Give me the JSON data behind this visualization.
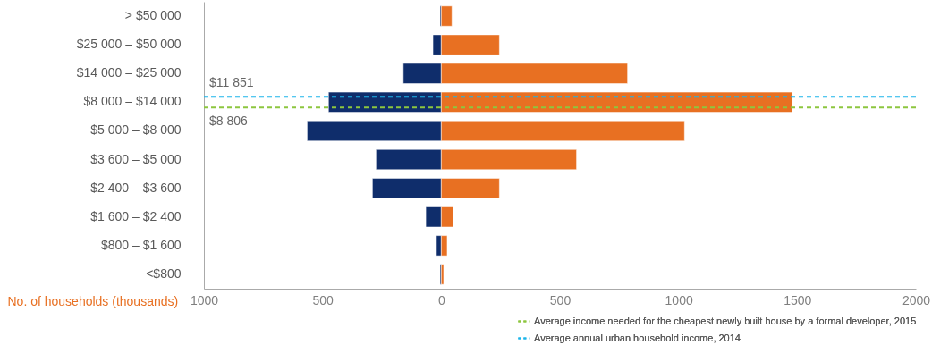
{
  "chart_data": {
    "type": "bar",
    "orientation": "horizontal",
    "xlabel": "No. of households (thousands)",
    "categories": [
      "> $50 000",
      "$25 000 – $50 000",
      "$14 000 – $25 000",
      "$8 000 – $14 000",
      "$5 000 – $8 000",
      "$3 600 – $5 000",
      "$2 400 – $3 600",
      "$1 600 – $2 400",
      "$800 – $1 600",
      "<$800"
    ],
    "series": [
      {
        "color": "#0f2d6b",
        "values": [
          -5,
          -35,
          -160,
          -475,
          -565,
          -275,
          -290,
          -65,
          -20,
          -5
        ]
      },
      {
        "color": "#e87022",
        "values": [
          45,
          245,
          785,
          1480,
          1025,
          570,
          245,
          50,
          25,
          10
        ]
      }
    ],
    "xlim": [
      -1000,
      2000
    ],
    "xticks": [
      {
        "value": -1000,
        "label": "1000"
      },
      {
        "value": -500,
        "label": "500"
      },
      0,
      500,
      1000,
      1500,
      2000
    ],
    "ref_lines": [
      {
        "axis": "y",
        "value": "$8 000 – $14 000",
        "label": "Average income needed for the cheapest newly built house by a formal developer, 2015",
        "color": "#8dc63f",
        "line_style": "dashed"
      },
      {
        "axis": "y",
        "value": "$8 000 – $14 000",
        "label": "Average annual urban household income, 2014",
        "color": "#1cb5ea",
        "line_style": "dashed"
      }
    ],
    "annotations": [
      "$11 851",
      "$8 806"
    ],
    "stacked": true,
    "legend": "bottom right",
    "grid": false
  }
}
